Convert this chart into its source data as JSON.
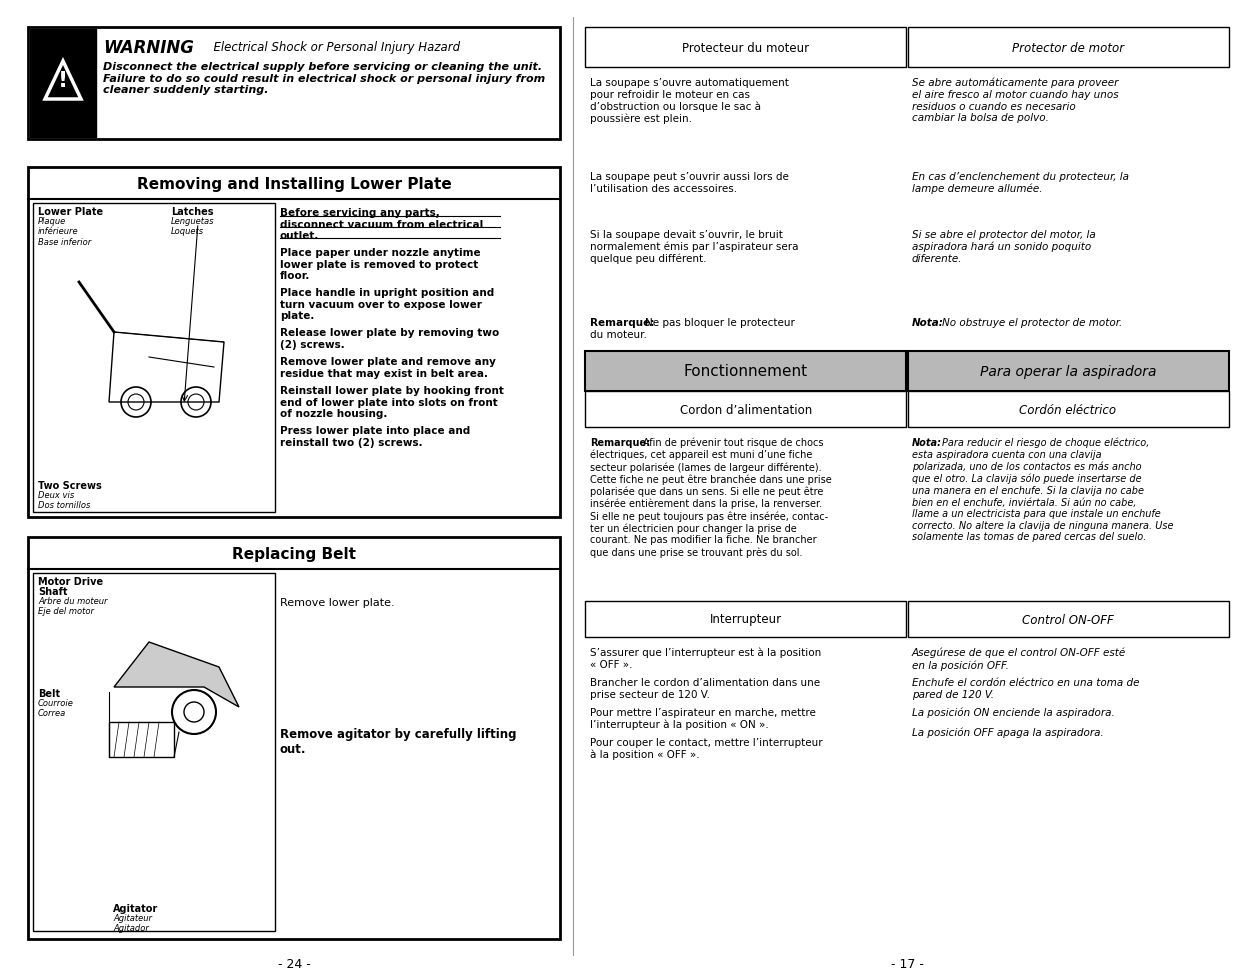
{
  "page_bg": "#ffffff",
  "warning_title": "WARNING",
  "warning_subtitle": "Electrical Shock or Personal Injury Hazard",
  "warning_body": "Disconnect the electrical supply before servicing or cleaning the unit.\nFailure to do so could result in electrical shock or personal injury from\ncleaner suddenly starting.",
  "section1_title": "Removing and Installing Lower Plate",
  "section2_title": "Replacing Belt",
  "page_num_left": "- 24 -",
  "page_num_right": "- 17 -",
  "prot_fr": "Protecteur du moteur",
  "prot_es": "Protector de motor",
  "fonct_fr": "Fonctionnement",
  "fonct_es": "Para operar la aspiradora",
  "cordon_fr": "Cordon d’alimentation",
  "cordon_es": "Cordón eléctrico",
  "inter_fr": "Interrupteur",
  "inter_es": "Control ON-OFF",
  "gray_fill": "#b8b8b8"
}
